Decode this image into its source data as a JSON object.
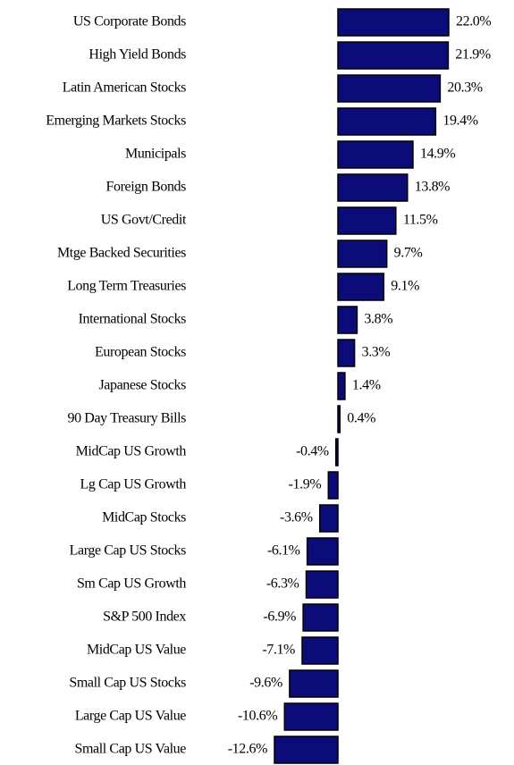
{
  "chart_data": {
    "type": "bar",
    "orientation": "horizontal",
    "categories": [
      "US Corporate Bonds",
      "High Yield Bonds",
      "Latin American Stocks",
      "Emerging Markets Stocks",
      "Municipals",
      "Foreign Bonds",
      "US Govt/Credit",
      "Mtge Backed Securities",
      "Long Term Treasuries",
      "International Stocks",
      "European Stocks",
      "Japanese Stocks",
      "90 Day Treasury Bills",
      "MidCap US Growth",
      "Lg Cap US Growth",
      "MidCap Stocks",
      "Large Cap US Stocks",
      "Sm Cap US Growth",
      "S&P 500 Index",
      "MidCap US Value",
      "Small Cap US Stocks",
      "Large Cap US Value",
      "Small Cap US Value"
    ],
    "values": [
      22.0,
      21.9,
      20.3,
      19.4,
      14.9,
      13.8,
      11.5,
      9.7,
      9.1,
      3.8,
      3.3,
      1.4,
      0.4,
      -0.4,
      -1.9,
      -3.6,
      -6.1,
      -6.3,
      -6.9,
      -7.1,
      -9.6,
      -10.6,
      -12.6
    ],
    "value_labels": [
      "22.0%",
      "21.9%",
      "20.3%",
      "19.4%",
      "14.9%",
      "13.8%",
      "11.5%",
      "9.7%",
      "9.1%",
      "3.8%",
      "3.3%",
      "1.4%",
      "0.4%",
      "-0.4%",
      "-1.9%",
      "-3.6%",
      "-6.1%",
      "-6.3%",
      "-6.9%",
      "-7.1%",
      "-9.6%",
      "-10.6%",
      "-12.6%"
    ],
    "color": "#0c0c78"
  }
}
